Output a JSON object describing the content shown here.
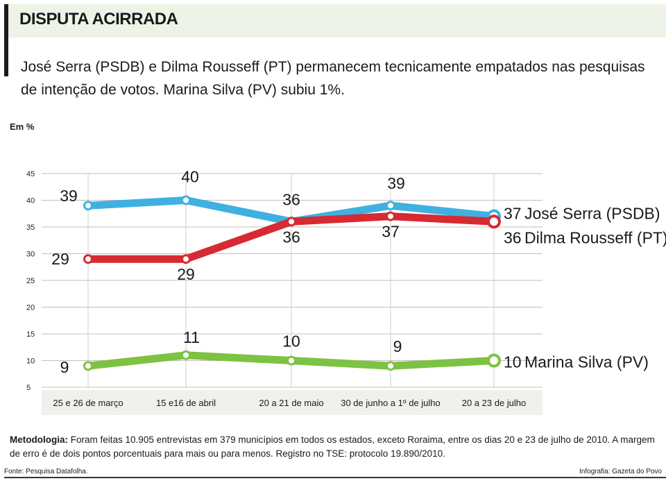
{
  "title": "DISPUTA ACIRRADA",
  "subtitle": "José Serra (PSDB) e Dilma Rousseff (PT) permanecem tecnicamente empatados nas pesquisas de intenção de votos. Marina Silva (PV) subiu 1%.",
  "unit_label": "Em %",
  "chart_data": {
    "type": "line",
    "categories": [
      "25 e 26 de março",
      "15 e16 de abril",
      "20 a 21 de maio",
      "30 de junho a 1º de julho",
      "20 a 23 de julho"
    ],
    "ylim": [
      5,
      45
    ],
    "yticks": [
      5,
      10,
      15,
      20,
      25,
      30,
      35,
      40,
      45
    ],
    "grid": true,
    "series": [
      {
        "name": "José Serra (PSDB)",
        "color": "#3fb0e0",
        "values": [
          39,
          40,
          36,
          39,
          37
        ],
        "labels": [
          "39",
          "40",
          "36",
          "39",
          "37"
        ]
      },
      {
        "name": "Dilma Rousseff (PT)",
        "color": "#d72a33",
        "values": [
          29,
          29,
          36,
          37,
          36
        ],
        "labels": [
          "29",
          "29",
          "36",
          "37",
          "36"
        ]
      },
      {
        "name": "Marina Silva (PV)",
        "color": "#7dc242",
        "values": [
          9,
          11,
          10,
          9,
          10
        ],
        "labels": [
          "9",
          "11",
          "10",
          "9",
          "10"
        ]
      }
    ]
  },
  "methodology_label": "Metodologia:",
  "methodology_text": "Foram feitas 10.905 entrevistas em 379 municípios em todos os estados, exceto Roraima, entre os dias 20 e 23 de julho de 2010. A margem de erro é de dois pontos porcentuais para mais ou para menos. Registro no TSE: protocolo 19.890/2010.",
  "source": "Fonte: Pesquisa Datafolha.",
  "credit": "Infografia: Gazeta do Povo"
}
